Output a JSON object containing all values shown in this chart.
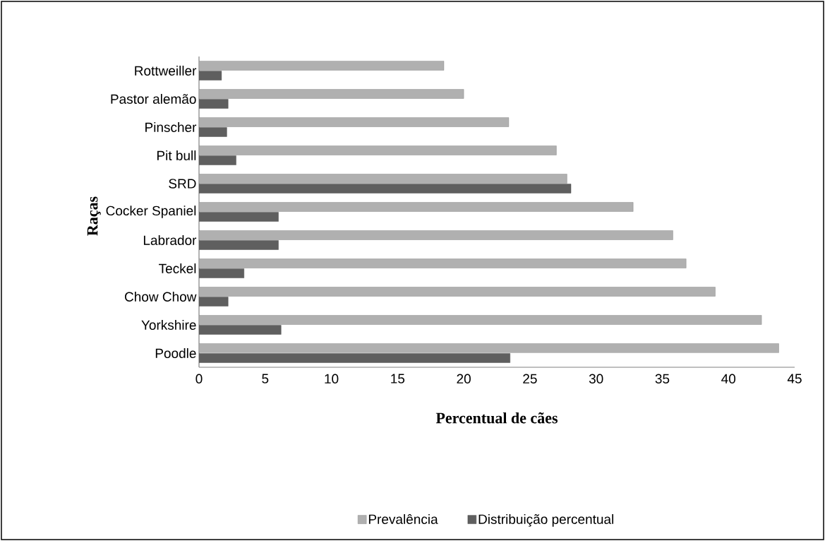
{
  "chart_data": {
    "type": "bar",
    "orientation": "horizontal",
    "xlabel": "Percentual de cães",
    "ylabel": "Raças",
    "categories": [
      "Rottweiller",
      "Pastor alemão",
      "Pinscher",
      "Pit bull",
      "SRD",
      "Cocker Spaniel",
      "Labrador",
      "Teckel",
      "Chow Chow",
      "Yorkshire",
      "Poodle"
    ],
    "series": [
      {
        "name": "Prevalência",
        "color": "#b0b0b0",
        "values": [
          18.5,
          20.0,
          23.4,
          27.0,
          27.8,
          32.8,
          35.8,
          36.8,
          39.0,
          42.5,
          43.8
        ]
      },
      {
        "name": "Distribuição percentual",
        "color": "#5f5f5f",
        "values": [
          1.7,
          2.2,
          2.1,
          2.8,
          28.1,
          6.0,
          6.0,
          3.4,
          2.2,
          6.2,
          23.5
        ]
      }
    ],
    "xlim": [
      0,
      45
    ],
    "xticks": [
      0,
      5,
      10,
      15,
      20,
      25,
      30,
      35,
      40,
      45
    ],
    "grid": false,
    "legend": "bottom"
  }
}
